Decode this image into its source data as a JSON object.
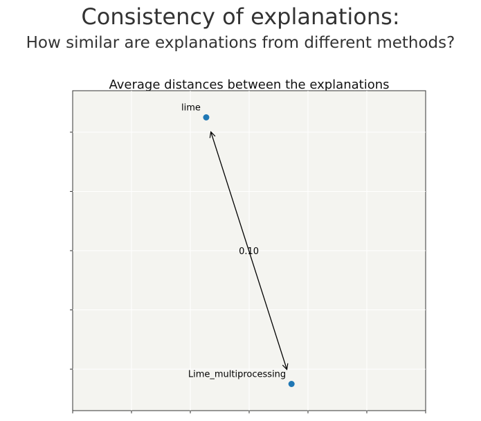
{
  "header": {
    "title": "Consistency of explanations:",
    "subtitle": "How similar are explanations from different methods?"
  },
  "chart_data": {
    "type": "scatter",
    "title": "Average distances between the explanations",
    "xlabel": "",
    "ylabel": "",
    "grid": true,
    "xlim": [
      0,
      6
    ],
    "ylim": [
      0,
      5.4
    ],
    "points": [
      {
        "label": "lime",
        "x": 2.27,
        "y": 4.95
      },
      {
        "label": "Lime_multiprocessing",
        "x": 3.72,
        "y": 0.45
      }
    ],
    "distances": [
      {
        "from": "lime",
        "to": "Lime_multiprocessing",
        "value": "0.10"
      }
    ],
    "colors": {
      "point": "#1f77b4",
      "plot_background": "#f4f4f0",
      "grid": "#ffffff",
      "axes": "#333333"
    }
  }
}
